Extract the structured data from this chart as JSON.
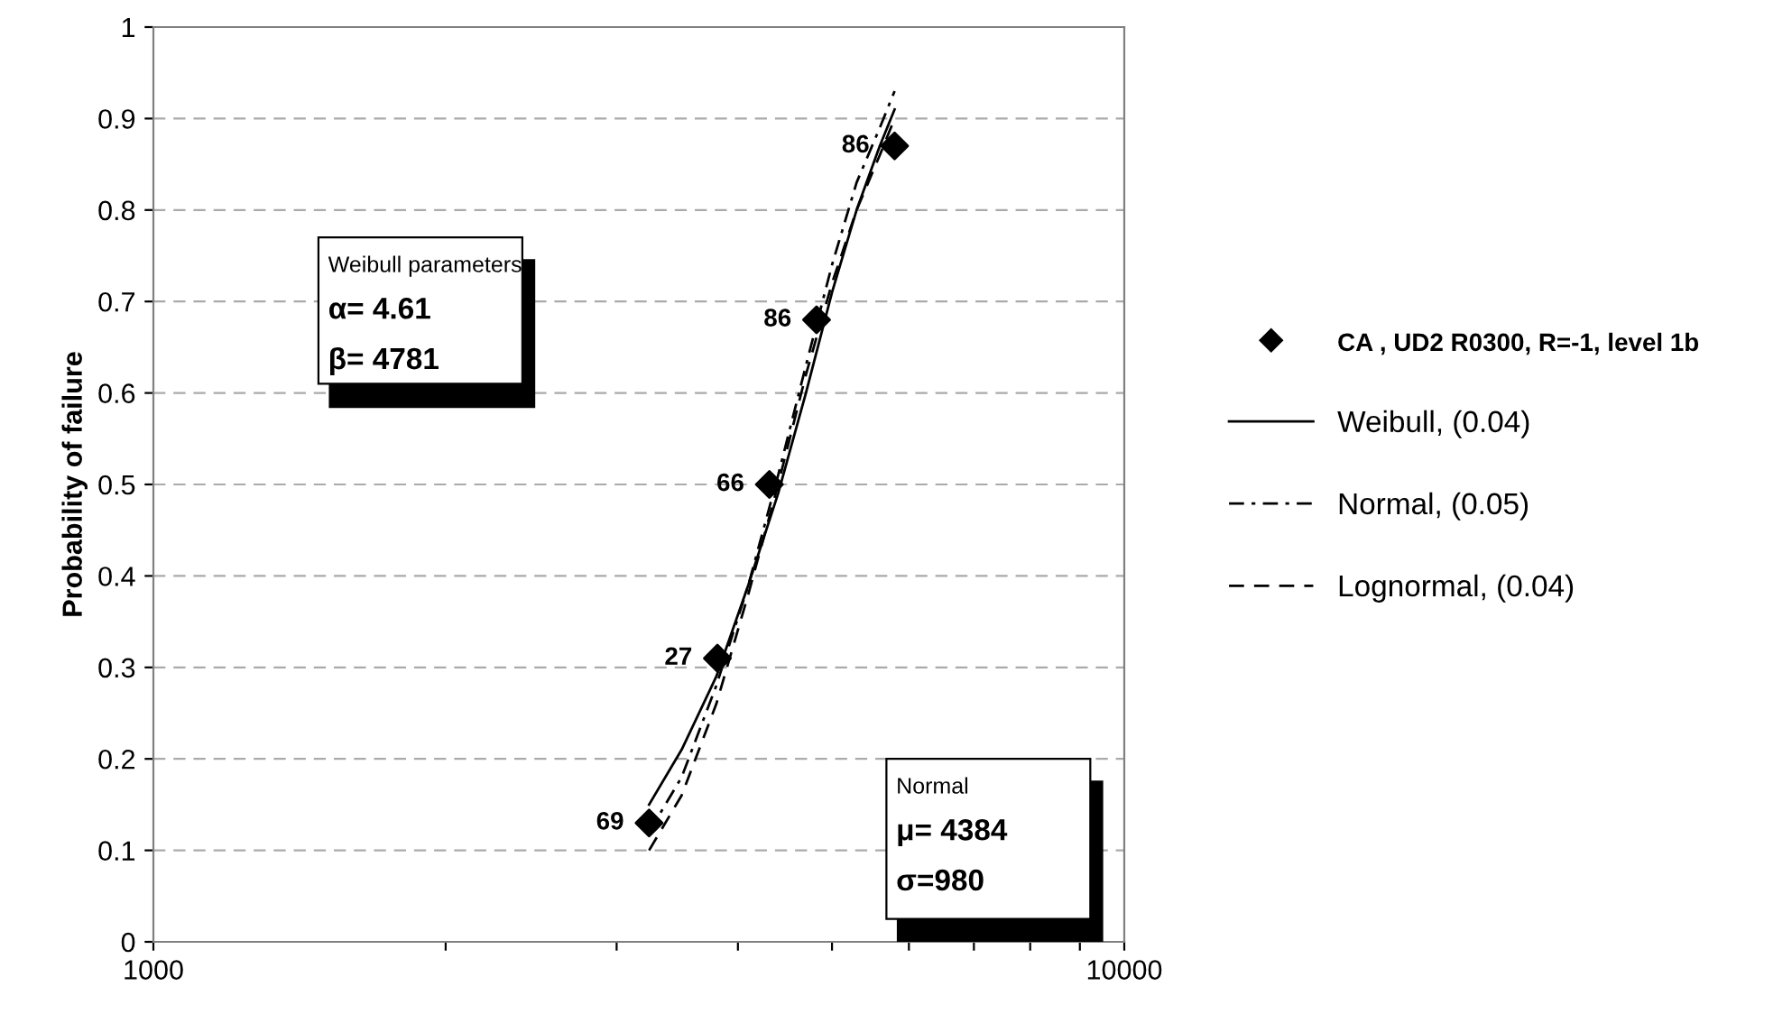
{
  "chart_data": {
    "type": "scatter",
    "ylabel": "Probability of failure",
    "log": "x",
    "xlim": [
      1000,
      10000
    ],
    "xticks": [
      1000,
      {
        "value": 2000,
        "label": null
      },
      {
        "value": 3000,
        "label": null
      },
      {
        "value": 4000,
        "label": null
      },
      {
        "value": 5000,
        "label": null
      },
      {
        "value": 6000,
        "label": null
      },
      {
        "value": 7000,
        "label": null
      },
      {
        "value": 8000,
        "label": null
      },
      {
        "value": 9000,
        "label": null
      },
      10000
    ],
    "ylim": [
      0,
      1
    ],
    "yticks": [
      0,
      0.1,
      0.2,
      0.3,
      0.4,
      0.5,
      0.6,
      0.7,
      0.8,
      0.9,
      1
    ],
    "grid": "y",
    "legend": "right",
    "series": [
      {
        "name": "CA , UD2 R0300, R=-1, level 1b",
        "color": "#000000",
        "marker": "diamond",
        "x": [
          3240,
          3810,
          4310,
          4820,
          5800
        ],
        "values": [
          0.13,
          0.31,
          0.5,
          0.68,
          0.87
        ]
      },
      {
        "name": "Weibull, (0.04)",
        "type": "line",
        "color": "#000000",
        "line_style": "solid",
        "x": [
          3240,
          3500,
          3800,
          4100,
          4400,
          4700,
          5000,
          5300,
          5600,
          5800
        ],
        "values": [
          0.15,
          0.21,
          0.29,
          0.39,
          0.49,
          0.6,
          0.71,
          0.8,
          0.87,
          0.91
        ]
      },
      {
        "name": "Normal, (0.05)",
        "type": "line",
        "color": "#000000",
        "line_style": "dashdot",
        "x": [
          3240,
          3500,
          3800,
          4100,
          4400,
          4700,
          5000,
          5300,
          5600,
          5800
        ],
        "values": [
          0.12,
          0.18,
          0.28,
          0.39,
          0.51,
          0.63,
          0.74,
          0.83,
          0.89,
          0.93
        ]
      },
      {
        "name": "Lognormal, (0.04)",
        "type": "line",
        "color": "#000000",
        "line_style": "dashed",
        "x": [
          3240,
          3500,
          3800,
          4100,
          4400,
          4700,
          5000,
          5300,
          5600,
          5800
        ],
        "values": [
          0.1,
          0.16,
          0.26,
          0.38,
          0.5,
          0.62,
          0.72,
          0.8,
          0.86,
          0.9
        ]
      }
    ],
    "annotations": [
      "Weibull parameters\nα= 4.61\nβ= 4781",
      "Normal\nμ= 4384\nσ=980",
      {
        "text": "69",
        "x": 3240,
        "y": 0.13
      },
      {
        "text": "27",
        "x": 3810,
        "y": 0.31
      },
      {
        "text": "66",
        "x": 4310,
        "y": 0.5
      },
      {
        "text": "86",
        "x": 4820,
        "y": 0.68
      },
      {
        "text": "86",
        "x": 5800,
        "y": 0.87
      }
    ]
  }
}
